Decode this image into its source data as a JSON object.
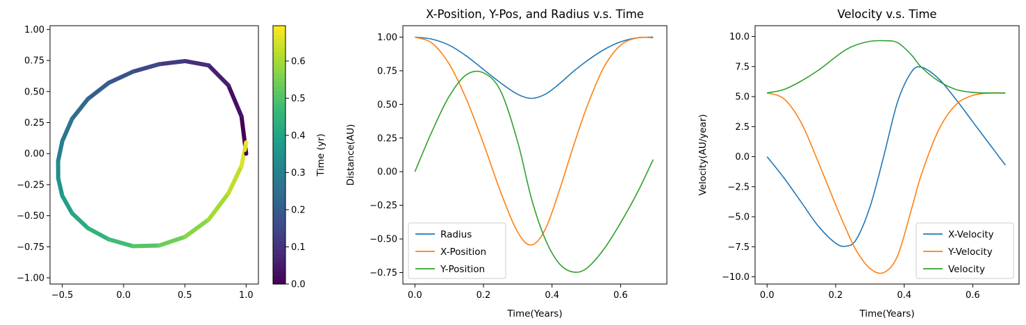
{
  "chart_data": [
    {
      "type": "scatter",
      "title": "",
      "xlabel": "",
      "ylabel": "",
      "xlim": [
        -0.6,
        1.1
      ],
      "ylim": [
        -1.05,
        1.03
      ],
      "xticks": [
        "−0.5",
        "0.0",
        "0.5",
        "1.0"
      ],
      "xtick_values": [
        -0.5,
        0.0,
        0.5,
        1.0
      ],
      "yticks": [
        "−1.00",
        "−0.75",
        "−0.50",
        "−0.25",
        "0.00",
        "0.25",
        "0.50",
        "0.75",
        "1.00"
      ],
      "ytick_values": [
        -1.0,
        -0.75,
        -0.5,
        -0.25,
        0.0,
        0.25,
        0.5,
        0.75,
        1.0
      ],
      "series": [
        {
          "x": [
            1.0,
            0.962,
            0.855,
            0.695,
            0.501,
            0.29,
            0.077,
            -0.121,
            -0.291,
            -0.42,
            -0.5,
            -0.534,
            -0.533,
            -0.5,
            -0.42,
            -0.291,
            -0.121,
            0.077,
            0.29,
            0.501,
            0.695,
            0.855,
            0.962,
            1.0
          ],
          "y": [
            0.0,
            0.3,
            0.55,
            0.71,
            0.745,
            0.72,
            0.66,
            0.57,
            0.44,
            0.28,
            0.1,
            -0.06,
            -0.2,
            -0.34,
            -0.48,
            -0.6,
            -0.69,
            -0.745,
            -0.74,
            -0.67,
            -0.53,
            -0.32,
            -0.1,
            0.09
          ],
          "t": [
            0.0,
            0.03,
            0.06,
            0.09,
            0.12,
            0.15,
            0.18,
            0.21,
            0.24,
            0.27,
            0.3,
            0.33,
            0.36,
            0.39,
            0.42,
            0.45,
            0.48,
            0.51,
            0.54,
            0.57,
            0.6,
            0.63,
            0.66,
            0.69
          ]
        }
      ],
      "colorbar": {
        "label": "Time (yr)",
        "range": [
          0.0,
          0.695
        ],
        "ticks": [
          "0.0",
          "0.1",
          "0.2",
          "0.3",
          "0.4",
          "0.5",
          "0.6"
        ],
        "tick_values": [
          0.0,
          0.1,
          0.2,
          0.3,
          0.4,
          0.5,
          0.6
        ],
        "colormap": "viridis"
      },
      "grid": false
    },
    {
      "type": "line",
      "title": "X-Position, Y-Pos, and Radius v.s. Time",
      "xlabel": "Time(Years)",
      "ylabel": "Distance(AU)",
      "xlim": [
        -0.035,
        0.735
      ],
      "ylim": [
        -0.835,
        1.085
      ],
      "xticks": [
        "0.0",
        "0.2",
        "0.4",
        "0.6"
      ],
      "xtick_values": [
        0.0,
        0.2,
        0.4,
        0.6
      ],
      "yticks": [
        "−0.75",
        "−0.50",
        "−0.25",
        "0.00",
        "0.25",
        "0.50",
        "0.75",
        "1.00"
      ],
      "ytick_values": [
        -0.75,
        -0.5,
        -0.25,
        0.0,
        0.25,
        0.5,
        0.75,
        1.0
      ],
      "x": [
        0.0,
        0.05,
        0.1,
        0.15,
        0.2,
        0.25,
        0.3,
        0.34,
        0.38,
        0.42,
        0.46,
        0.5,
        0.55,
        0.6,
        0.65,
        0.695
      ],
      "series": [
        {
          "name": "Radius",
          "color": "#1f77b4",
          "values": [
            1.0,
            0.985,
            0.94,
            0.86,
            0.76,
            0.66,
            0.575,
            0.545,
            0.575,
            0.65,
            0.74,
            0.82,
            0.905,
            0.965,
            0.995,
            1.0
          ]
        },
        {
          "name": "X-Position",
          "color": "#ff7f0e",
          "values": [
            1.0,
            0.955,
            0.8,
            0.54,
            0.21,
            -0.15,
            -0.45,
            -0.545,
            -0.43,
            -0.15,
            0.17,
            0.47,
            0.77,
            0.94,
            0.995,
            0.995
          ]
        },
        {
          "name": "Y-Position",
          "color": "#2ca02c",
          "values": [
            0.0,
            0.3,
            0.56,
            0.72,
            0.735,
            0.6,
            0.22,
            -0.2,
            -0.5,
            -0.68,
            -0.745,
            -0.72,
            -0.58,
            -0.38,
            -0.15,
            0.09
          ]
        }
      ],
      "legend": "lower-left",
      "grid": false
    },
    {
      "type": "line",
      "title": "Velocity v.s. Time",
      "xlabel": "Time(Years)",
      "ylabel": "Velocity(AU/year)",
      "xlim": [
        -0.035,
        0.735
      ],
      "ylim": [
        -10.6,
        10.9
      ],
      "xticks": [
        "0.0",
        "0.2",
        "0.4",
        "0.6"
      ],
      "xtick_values": [
        0.0,
        0.2,
        0.4,
        0.6
      ],
      "yticks": [
        "−10.0",
        "−7.5",
        "−5.0",
        "−2.5",
        "0.0",
        "2.5",
        "5.0",
        "7.5",
        "10.0"
      ],
      "ytick_values": [
        -10.0,
        -7.5,
        -5.0,
        -2.5,
        0.0,
        2.5,
        5.0,
        7.5,
        10.0
      ],
      "x": [
        0.0,
        0.05,
        0.1,
        0.15,
        0.2,
        0.23,
        0.26,
        0.3,
        0.34,
        0.38,
        0.42,
        0.45,
        0.5,
        0.55,
        0.6,
        0.65,
        0.695
      ],
      "series": [
        {
          "name": "X-Velocity",
          "color": "#1f77b4",
          "values": [
            0.0,
            -1.8,
            -3.8,
            -5.8,
            -7.2,
            -7.45,
            -6.9,
            -4.2,
            0.0,
            4.5,
            7.0,
            7.45,
            6.5,
            4.8,
            2.9,
            1.0,
            -0.7
          ]
        },
        {
          "name": "Y-Velocity",
          "color": "#ff7f0e",
          "values": [
            5.3,
            4.8,
            2.8,
            -0.5,
            -4.0,
            -6.0,
            -7.8,
            -9.3,
            -9.65,
            -8.3,
            -4.5,
            -1.5,
            2.2,
            4.3,
            5.1,
            5.3,
            5.3
          ]
        },
        {
          "name": "Velocity",
          "color": "#2ca02c",
          "values": [
            5.3,
            5.6,
            6.3,
            7.2,
            8.3,
            8.9,
            9.3,
            9.6,
            9.65,
            9.5,
            8.5,
            7.45,
            6.3,
            5.6,
            5.35,
            5.3,
            5.3
          ]
        }
      ],
      "legend": "lower-right",
      "grid": false
    }
  ]
}
